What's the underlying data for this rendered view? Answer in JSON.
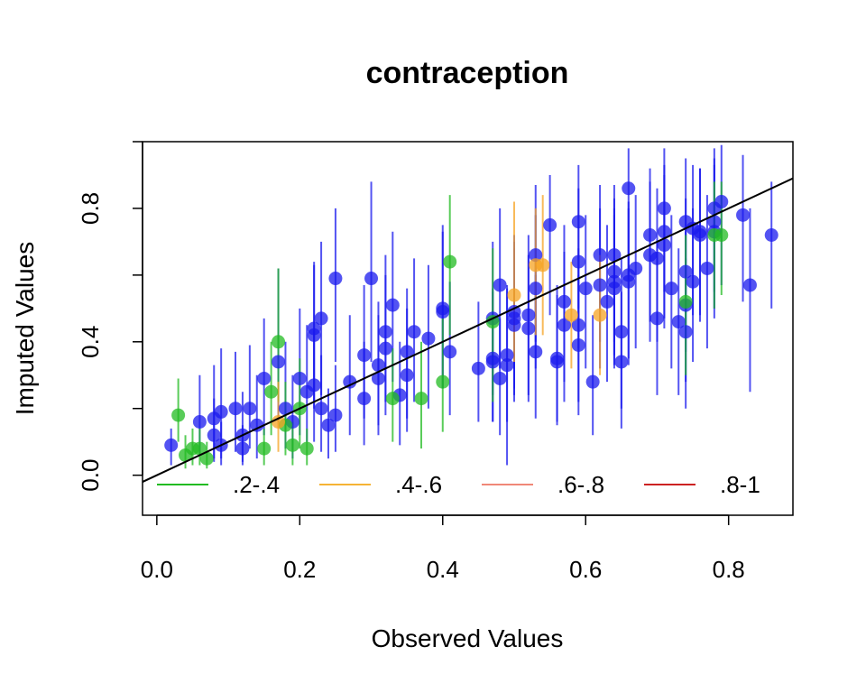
{
  "chart_data": {
    "type": "scatter",
    "title": "contraception",
    "xlabel": "Observed Values",
    "ylabel": "Imputed Values",
    "xlim": [
      -0.02,
      0.89
    ],
    "ylim": [
      -0.12,
      1.0
    ],
    "x_ticks": [
      0.0,
      0.2,
      0.4,
      0.6,
      0.8
    ],
    "x_tick_labels": [
      "0.0",
      "0.2",
      "0.4",
      "0.6",
      "0.8"
    ],
    "y_ticks": [
      0.0,
      0.4,
      0.8
    ],
    "y_tick_labels": [
      "0.0",
      "0.4",
      "0.8"
    ],
    "y_minor_ticks": [
      0.2,
      0.6,
      1.0
    ],
    "grid": false,
    "reference_line": {
      "intercept": 0.0,
      "slope": 1.0
    },
    "legend": {
      "position": "bottom",
      "entries": [
        {
          "label": ".2-.4",
          "color": "#22bb22"
        },
        {
          "label": ".4-.6",
          "color": "#f5b335"
        },
        {
          "label": ".6-.8",
          "color": "#f08878"
        },
        {
          "label": ".8-1",
          "color": "#cc2222"
        }
      ]
    },
    "colors": {
      "blue": "#1a1aee",
      "green": "#22bb22",
      "orange": "#f5a323",
      "reference_line": "#000000"
    },
    "series": [
      {
        "color_key": "blue",
        "points": [
          [
            0.02,
            0.09,
            0.03,
            0.14
          ],
          [
            0.06,
            0.16,
            0.06,
            0.3
          ],
          [
            0.08,
            0.17,
            0.05,
            0.33
          ],
          [
            0.09,
            0.19,
            0.05,
            0.38
          ],
          [
            0.08,
            0.12,
            0.04,
            0.23
          ],
          [
            0.09,
            0.09,
            0.03,
            0.16
          ],
          [
            0.11,
            0.2,
            0.07,
            0.37
          ],
          [
            0.12,
            0.12,
            0.04,
            0.25
          ],
          [
            0.13,
            0.2,
            0.08,
            0.39
          ],
          [
            0.15,
            0.29,
            0.12,
            0.47
          ],
          [
            0.14,
            0.15,
            0.05,
            0.3
          ],
          [
            0.12,
            0.08,
            0.03,
            0.15
          ],
          [
            0.17,
            0.34,
            0.16,
            0.62
          ],
          [
            0.18,
            0.2,
            0.08,
            0.4
          ],
          [
            0.19,
            0.16,
            0.05,
            0.3
          ],
          [
            0.2,
            0.29,
            0.12,
            0.5
          ],
          [
            0.21,
            0.25,
            0.1,
            0.45
          ],
          [
            0.22,
            0.42,
            0.2,
            0.63
          ],
          [
            0.22,
            0.44,
            0.22,
            0.64
          ],
          [
            0.23,
            0.47,
            0.24,
            0.7
          ],
          [
            0.22,
            0.27,
            0.1,
            0.43
          ],
          [
            0.23,
            0.2,
            0.07,
            0.36
          ],
          [
            0.24,
            0.15,
            0.05,
            0.26
          ],
          [
            0.25,
            0.18,
            0.07,
            0.33
          ],
          [
            0.25,
            0.59,
            0.34,
            0.8
          ],
          [
            0.27,
            0.28,
            0.12,
            0.48
          ],
          [
            0.29,
            0.23,
            0.09,
            0.4
          ],
          [
            0.29,
            0.36,
            0.17,
            0.57
          ],
          [
            0.3,
            0.59,
            0.34,
            0.88
          ],
          [
            0.31,
            0.33,
            0.15,
            0.52
          ],
          [
            0.31,
            0.29,
            0.12,
            0.48
          ],
          [
            0.32,
            0.38,
            0.18,
            0.6
          ],
          [
            0.32,
            0.43,
            0.22,
            0.66
          ],
          [
            0.33,
            0.51,
            0.28,
            0.73
          ],
          [
            0.34,
            0.24,
            0.09,
            0.4
          ],
          [
            0.35,
            0.37,
            0.17,
            0.56
          ],
          [
            0.35,
            0.3,
            0.13,
            0.5
          ],
          [
            0.36,
            0.43,
            0.22,
            0.65
          ],
          [
            0.38,
            0.41,
            0.2,
            0.63
          ],
          [
            0.4,
            0.5,
            0.26,
            0.75
          ],
          [
            0.4,
            0.49,
            0.26,
            0.73
          ],
          [
            0.41,
            0.37,
            0.18,
            0.58
          ],
          [
            0.45,
            0.32,
            0.16,
            0.52
          ],
          [
            0.47,
            0.34,
            0.16,
            0.56
          ],
          [
            0.47,
            0.47,
            0.24,
            0.7
          ],
          [
            0.47,
            0.35,
            0.16,
            0.55
          ],
          [
            0.48,
            0.57,
            0.32,
            0.8
          ],
          [
            0.48,
            0.29,
            0.12,
            0.47
          ],
          [
            0.49,
            0.36,
            0.16,
            0.57
          ],
          [
            0.49,
            0.33,
            0.03,
            0.56
          ],
          [
            0.5,
            0.45,
            0.22,
            0.68
          ],
          [
            0.5,
            0.47,
            0.24,
            0.7
          ],
          [
            0.5,
            0.49,
            0.26,
            0.72
          ],
          [
            0.52,
            0.48,
            0.24,
            0.72
          ],
          [
            0.52,
            0.44,
            0.22,
            0.66
          ],
          [
            0.53,
            0.37,
            0.17,
            0.6
          ],
          [
            0.53,
            0.56,
            0.32,
            0.78
          ],
          [
            0.53,
            0.66,
            0.4,
            0.87
          ],
          [
            0.55,
            0.75,
            0.48,
            0.9
          ],
          [
            0.56,
            0.35,
            0.16,
            0.57
          ],
          [
            0.56,
            0.34,
            0.15,
            0.54
          ],
          [
            0.57,
            0.45,
            0.22,
            0.67
          ],
          [
            0.57,
            0.52,
            0.28,
            0.75
          ],
          [
            0.59,
            0.39,
            0.18,
            0.6
          ],
          [
            0.59,
            0.45,
            0.22,
            0.68
          ],
          [
            0.59,
            0.64,
            0.38,
            0.86
          ],
          [
            0.59,
            0.76,
            0.5,
            0.93
          ],
          [
            0.6,
            0.56,
            0.32,
            0.78
          ],
          [
            0.61,
            0.28,
            0.12,
            0.48
          ],
          [
            0.62,
            0.57,
            0.32,
            0.8
          ],
          [
            0.62,
            0.66,
            0.4,
            0.87
          ],
          [
            0.63,
            0.52,
            0.28,
            0.75
          ],
          [
            0.64,
            0.56,
            0.32,
            0.78
          ],
          [
            0.64,
            0.58,
            0.33,
            0.8
          ],
          [
            0.64,
            0.61,
            0.36,
            0.83
          ],
          [
            0.64,
            0.66,
            0.4,
            0.87
          ],
          [
            0.65,
            0.43,
            0.2,
            0.65
          ],
          [
            0.65,
            0.34,
            0.14,
            0.55
          ],
          [
            0.66,
            0.58,
            0.33,
            0.8
          ],
          [
            0.66,
            0.6,
            0.35,
            0.82
          ],
          [
            0.66,
            0.86,
            0.6,
            0.98
          ],
          [
            0.67,
            0.62,
            0.38,
            0.84
          ],
          [
            0.69,
            0.66,
            0.4,
            0.88
          ],
          [
            0.69,
            0.72,
            0.46,
            0.92
          ],
          [
            0.7,
            0.65,
            0.4,
            0.86
          ],
          [
            0.7,
            0.47,
            0.24,
            0.7
          ],
          [
            0.71,
            0.69,
            0.44,
            0.9
          ],
          [
            0.71,
            0.73,
            0.47,
            0.93
          ],
          [
            0.71,
            0.8,
            0.55,
            0.98
          ],
          [
            0.72,
            0.56,
            0.32,
            0.78
          ],
          [
            0.73,
            0.46,
            0.24,
            0.68
          ],
          [
            0.74,
            0.43,
            0.2,
            0.65
          ],
          [
            0.74,
            0.51,
            0.28,
            0.73
          ],
          [
            0.74,
            0.61,
            0.37,
            0.83
          ],
          [
            0.74,
            0.76,
            0.5,
            0.95
          ],
          [
            0.75,
            0.58,
            0.34,
            0.8
          ],
          [
            0.75,
            0.74,
            0.48,
            0.93
          ],
          [
            0.76,
            0.72,
            0.46,
            0.92
          ],
          [
            0.76,
            0.73,
            0.48,
            0.92
          ],
          [
            0.77,
            0.62,
            0.38,
            0.84
          ],
          [
            0.78,
            0.73,
            0.47,
            0.93
          ],
          [
            0.78,
            0.76,
            0.5,
            0.95
          ],
          [
            0.78,
            0.8,
            0.55,
            0.98
          ],
          [
            0.79,
            0.82,
            0.57,
            0.99
          ],
          [
            0.82,
            0.78,
            0.52,
            0.96
          ],
          [
            0.83,
            0.57,
            0.25,
            0.8
          ],
          [
            0.86,
            0.72,
            0.5,
            0.88
          ]
        ]
      },
      {
        "color_key": "green",
        "points": [
          [
            0.03,
            0.18,
            0.1,
            0.29
          ],
          [
            0.04,
            0.06,
            0.02,
            0.12
          ],
          [
            0.05,
            0.08,
            0.03,
            0.14
          ],
          [
            0.06,
            0.08,
            0.03,
            0.14
          ],
          [
            0.07,
            0.05,
            0.02,
            0.1
          ],
          [
            0.15,
            0.08,
            0.03,
            0.14
          ],
          [
            0.16,
            0.25,
            0.12,
            0.4
          ],
          [
            0.17,
            0.4,
            0.22,
            0.62
          ],
          [
            0.18,
            0.15,
            0.06,
            0.28
          ],
          [
            0.19,
            0.09,
            0.03,
            0.16
          ],
          [
            0.2,
            0.2,
            0.08,
            0.35
          ],
          [
            0.21,
            0.08,
            0.03,
            0.14
          ],
          [
            0.33,
            0.23,
            0.1,
            0.38
          ],
          [
            0.37,
            0.23,
            0.08,
            0.4
          ],
          [
            0.4,
            0.28,
            0.13,
            0.47
          ],
          [
            0.41,
            0.64,
            0.42,
            0.84
          ],
          [
            0.47,
            0.46,
            0.22,
            0.68
          ],
          [
            0.74,
            0.52,
            0.3,
            0.72
          ],
          [
            0.78,
            0.72,
            0.5,
            0.88
          ],
          [
            0.79,
            0.72,
            0.54,
            0.88
          ]
        ]
      },
      {
        "color_key": "orange",
        "points": [
          [
            0.17,
            0.16,
            0.07,
            0.28
          ],
          [
            0.5,
            0.54,
            0.34,
            0.82
          ],
          [
            0.53,
            0.63,
            0.42,
            0.8
          ],
          [
            0.54,
            0.63,
            0.42,
            0.84
          ],
          [
            0.58,
            0.48,
            0.32,
            0.64
          ],
          [
            0.62,
            0.48,
            0.3,
            0.66
          ]
        ]
      }
    ]
  }
}
